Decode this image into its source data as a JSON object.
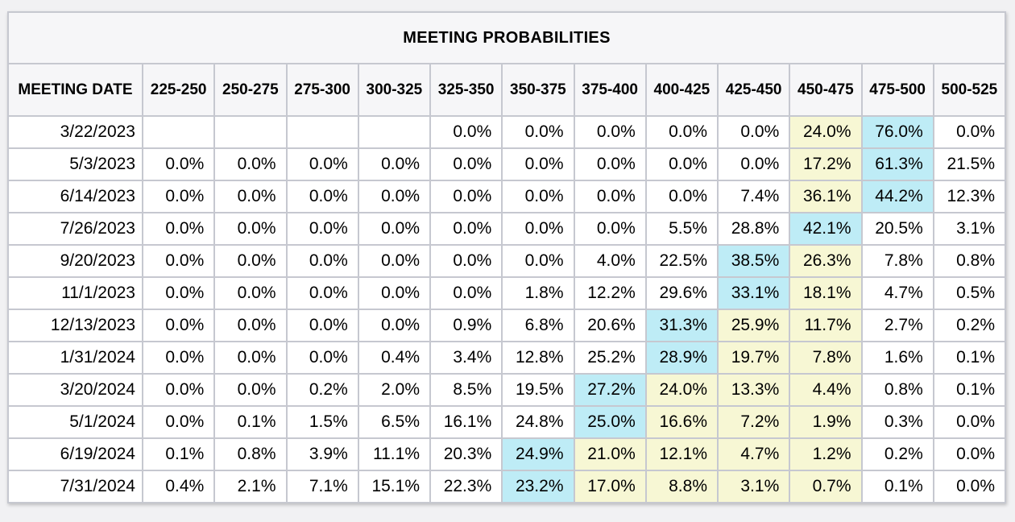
{
  "page": {
    "background": "#f1f1f3"
  },
  "table": {
    "title": "MEETING PROBABILITIES",
    "date_column_header": "MEETING DATE",
    "rate_columns": [
      "225-250",
      "250-275",
      "275-300",
      "300-325",
      "325-350",
      "350-375",
      "375-400",
      "400-425",
      "425-450",
      "450-475",
      "475-500",
      "500-525"
    ],
    "colors": {
      "cyan_highlight": "#beecf6",
      "yellow_highlight": "#f7f7d4",
      "grid": "#c6c8d0",
      "header_bg": "#f6f6f8",
      "outer_border": "#b5b8c2"
    },
    "rows": [
      {
        "date": "3/22/2023",
        "values": [
          "",
          "",
          "",
          "",
          "0.0%",
          "0.0%",
          "0.0%",
          "0.0%",
          "0.0%",
          "24.0%",
          "76.0%",
          "0.0%"
        ],
        "highlights": [
          null,
          null,
          null,
          null,
          null,
          null,
          null,
          null,
          null,
          "yellow",
          "cyan",
          null
        ]
      },
      {
        "date": "5/3/2023",
        "values": [
          "0.0%",
          "0.0%",
          "0.0%",
          "0.0%",
          "0.0%",
          "0.0%",
          "0.0%",
          "0.0%",
          "0.0%",
          "17.2%",
          "61.3%",
          "21.5%"
        ],
        "highlights": [
          null,
          null,
          null,
          null,
          null,
          null,
          null,
          null,
          null,
          "yellow",
          "cyan",
          null
        ]
      },
      {
        "date": "6/14/2023",
        "values": [
          "0.0%",
          "0.0%",
          "0.0%",
          "0.0%",
          "0.0%",
          "0.0%",
          "0.0%",
          "0.0%",
          "7.4%",
          "36.1%",
          "44.2%",
          "12.3%"
        ],
        "highlights": [
          null,
          null,
          null,
          null,
          null,
          null,
          null,
          null,
          null,
          "yellow",
          "cyan",
          null
        ]
      },
      {
        "date": "7/26/2023",
        "values": [
          "0.0%",
          "0.0%",
          "0.0%",
          "0.0%",
          "0.0%",
          "0.0%",
          "0.0%",
          "5.5%",
          "28.8%",
          "42.1%",
          "20.5%",
          "3.1%"
        ],
        "highlights": [
          null,
          null,
          null,
          null,
          null,
          null,
          null,
          null,
          null,
          "cyan",
          null,
          null
        ]
      },
      {
        "date": "9/20/2023",
        "values": [
          "0.0%",
          "0.0%",
          "0.0%",
          "0.0%",
          "0.0%",
          "0.0%",
          "4.0%",
          "22.5%",
          "38.5%",
          "26.3%",
          "7.8%",
          "0.8%"
        ],
        "highlights": [
          null,
          null,
          null,
          null,
          null,
          null,
          null,
          null,
          "cyan",
          "yellow",
          null,
          null
        ]
      },
      {
        "date": "11/1/2023",
        "values": [
          "0.0%",
          "0.0%",
          "0.0%",
          "0.0%",
          "0.0%",
          "1.8%",
          "12.2%",
          "29.6%",
          "33.1%",
          "18.1%",
          "4.7%",
          "0.5%"
        ],
        "highlights": [
          null,
          null,
          null,
          null,
          null,
          null,
          null,
          null,
          "cyan",
          "yellow",
          null,
          null
        ]
      },
      {
        "date": "12/13/2023",
        "values": [
          "0.0%",
          "0.0%",
          "0.0%",
          "0.0%",
          "0.9%",
          "6.8%",
          "20.6%",
          "31.3%",
          "25.9%",
          "11.7%",
          "2.7%",
          "0.2%"
        ],
        "highlights": [
          null,
          null,
          null,
          null,
          null,
          null,
          null,
          "cyan",
          "yellow",
          "yellow",
          null,
          null
        ]
      },
      {
        "date": "1/31/2024",
        "values": [
          "0.0%",
          "0.0%",
          "0.0%",
          "0.4%",
          "3.4%",
          "12.8%",
          "25.2%",
          "28.9%",
          "19.7%",
          "7.8%",
          "1.6%",
          "0.1%"
        ],
        "highlights": [
          null,
          null,
          null,
          null,
          null,
          null,
          null,
          "cyan",
          "yellow",
          "yellow",
          null,
          null
        ]
      },
      {
        "date": "3/20/2024",
        "values": [
          "0.0%",
          "0.0%",
          "0.2%",
          "2.0%",
          "8.5%",
          "19.5%",
          "27.2%",
          "24.0%",
          "13.3%",
          "4.4%",
          "0.8%",
          "0.1%"
        ],
        "highlights": [
          null,
          null,
          null,
          null,
          null,
          null,
          "cyan",
          "yellow",
          "yellow",
          "yellow",
          null,
          null
        ]
      },
      {
        "date": "5/1/2024",
        "values": [
          "0.0%",
          "0.1%",
          "1.5%",
          "6.5%",
          "16.1%",
          "24.8%",
          "25.0%",
          "16.6%",
          "7.2%",
          "1.9%",
          "0.3%",
          "0.0%"
        ],
        "highlights": [
          null,
          null,
          null,
          null,
          null,
          null,
          "cyan",
          "yellow",
          "yellow",
          "yellow",
          null,
          null
        ]
      },
      {
        "date": "6/19/2024",
        "values": [
          "0.1%",
          "0.8%",
          "3.9%",
          "11.1%",
          "20.3%",
          "24.9%",
          "21.0%",
          "12.1%",
          "4.7%",
          "1.2%",
          "0.2%",
          "0.0%"
        ],
        "highlights": [
          null,
          null,
          null,
          null,
          null,
          "cyan",
          "yellow",
          "yellow",
          "yellow",
          "yellow",
          null,
          null
        ]
      },
      {
        "date": "7/31/2024",
        "values": [
          "0.4%",
          "2.1%",
          "7.1%",
          "15.1%",
          "22.3%",
          "23.2%",
          "17.0%",
          "8.8%",
          "3.1%",
          "0.7%",
          "0.1%",
          "0.0%"
        ],
        "highlights": [
          null,
          null,
          null,
          null,
          null,
          "cyan",
          "yellow",
          "yellow",
          "yellow",
          "yellow",
          null,
          null
        ]
      }
    ]
  }
}
